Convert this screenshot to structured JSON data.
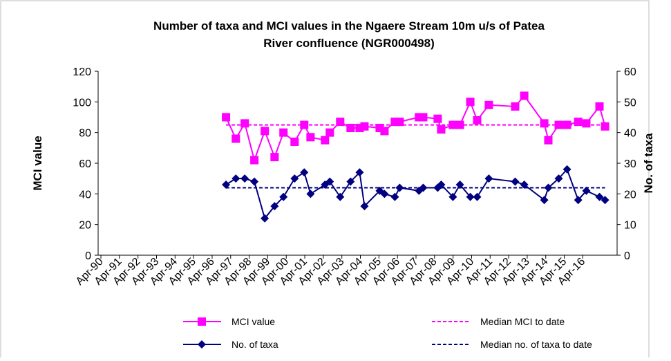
{
  "chart_data": {
    "type": "line",
    "title": [
      "Number of taxa and MCI values in the Ngaere Stream 10m u/s of Patea",
      "River confluence (NGR000498)"
    ],
    "y_label": "MCI value",
    "y2_label": "No. of taxa",
    "xlim": [
      1990.1,
      2018.1
    ],
    "xticks": [
      {
        "value": 1990.25,
        "label": "Apr-90"
      },
      {
        "value": 1991.25,
        "label": "Apr-91"
      },
      {
        "value": 1992.25,
        "label": "Apr-92"
      },
      {
        "value": 1993.25,
        "label": "Apr-93"
      },
      {
        "value": 1994.25,
        "label": "Apr-94"
      },
      {
        "value": 1995.25,
        "label": "Apr-95"
      },
      {
        "value": 1996.25,
        "label": "Apr-96"
      },
      {
        "value": 1997.25,
        "label": "Apr-97"
      },
      {
        "value": 1998.25,
        "label": "Apr-98"
      },
      {
        "value": 1999.25,
        "label": "Apr-99"
      },
      {
        "value": 2000.25,
        "label": "Apr-00"
      },
      {
        "value": 2001.25,
        "label": "Apr-01"
      },
      {
        "value": 2002.25,
        "label": "Apr-02"
      },
      {
        "value": 2003.25,
        "label": "Apr-03"
      },
      {
        "value": 2004.25,
        "label": "Apr-04"
      },
      {
        "value": 2005.25,
        "label": "Apr-05"
      },
      {
        "value": 2006.25,
        "label": "Apr-06"
      },
      {
        "value": 2007.25,
        "label": "Apr-07"
      },
      {
        "value": 2008.25,
        "label": "Apr-08"
      },
      {
        "value": 2009.25,
        "label": "Apr-09"
      },
      {
        "value": 2010.25,
        "label": "Apr-10"
      },
      {
        "value": 2011.25,
        "label": "Apr-11"
      },
      {
        "value": 2012.25,
        "label": "Apr-12"
      },
      {
        "value": 2013.25,
        "label": "Apr-13"
      },
      {
        "value": 2014.25,
        "label": "Apr-14"
      },
      {
        "value": 2015.25,
        "label": "Apr-15"
      },
      {
        "value": 2016.25,
        "label": "Apr-16"
      }
    ],
    "ylim": [
      0,
      120
    ],
    "yticks": [
      0,
      20,
      40,
      60,
      80,
      100,
      120
    ],
    "y2lim": [
      0,
      60
    ],
    "y2ticks": [
      0,
      10,
      20,
      30,
      40,
      50,
      60
    ],
    "series": [
      {
        "name": "MCI value",
        "color": "#ff00ff",
        "marker": "square",
        "axis": "y",
        "x": [
          1997.0,
          1997.53,
          1998.01,
          1998.53,
          1999.09,
          1999.62,
          2000.1,
          2000.7,
          2001.22,
          2001.56,
          2002.34,
          2002.6,
          2003.16,
          2003.72,
          2004.21,
          2004.47,
          2005.29,
          2005.55,
          2006.11,
          2006.37,
          2007.41,
          2007.64,
          2008.42,
          2008.61,
          2009.24,
          2009.62,
          2010.18,
          2010.55,
          2011.18,
          2012.6,
          2013.09,
          2014.17,
          2014.39,
          2014.95,
          2015.4,
          2016.0,
          2016.44,
          2017.15,
          2017.45
        ],
        "values": [
          90,
          76,
          86,
          62,
          81,
          64,
          80,
          74,
          85,
          77,
          75,
          80,
          87,
          83,
          83,
          84,
          83,
          81,
          87,
          87,
          90,
          90,
          89,
          82,
          85,
          85,
          100,
          88,
          98,
          97,
          104,
          86,
          75,
          85,
          85,
          87,
          86,
          97,
          84
        ]
      },
      {
        "name": "Median MCI to date",
        "color": "#ff00ff",
        "dash": true,
        "axis": "y",
        "x": [
          1997.0,
          2017.45
        ],
        "values": [
          85,
          85
        ]
      },
      {
        "name": "No. of taxa",
        "color": "#000080",
        "marker": "diamond",
        "axis": "y2",
        "x": [
          1997.0,
          1997.53,
          1998.01,
          1998.53,
          1999.09,
          1999.62,
          2000.1,
          2000.7,
          2001.22,
          2001.56,
          2002.34,
          2002.6,
          2003.16,
          2003.72,
          2004.21,
          2004.47,
          2005.29,
          2005.55,
          2006.11,
          2006.37,
          2007.41,
          2007.64,
          2008.42,
          2008.61,
          2009.24,
          2009.62,
          2010.18,
          2010.55,
          2011.18,
          2012.6,
          2013.09,
          2014.17,
          2014.39,
          2014.95,
          2015.4,
          2016.0,
          2016.44,
          2017.15,
          2017.45
        ],
        "values": [
          23,
          25,
          25,
          24,
          12,
          16,
          19,
          25,
          27,
          20,
          23,
          24,
          19,
          24,
          27,
          16,
          21,
          20,
          19,
          22,
          21,
          22,
          22,
          23,
          19,
          23,
          19,
          19,
          25,
          24,
          23,
          18,
          22,
          25,
          28,
          18,
          21,
          19,
          18
        ]
      },
      {
        "name": "Median no. of taxa to date",
        "color": "#000080",
        "dash": true,
        "axis": "y2",
        "x": [
          1997.0,
          2017.45
        ],
        "values": [
          22,
          22
        ]
      }
    ]
  }
}
